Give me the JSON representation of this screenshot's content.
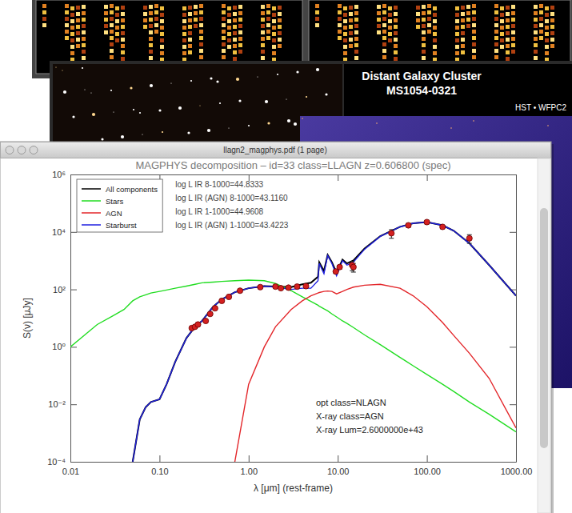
{
  "screenshot": {
    "window_title": "llagn2_magphys.pdf (1 page)",
    "background_title": [
      "Distant Galaxy Cluster",
      "MS1054-0321"
    ],
    "background_subtitle": "HST • WFPC2"
  },
  "chart_data": {
    "type": "line",
    "title": "MAGPHYS decomposition – id=33 class=LLAGN z=0.606800 (spec)",
    "x_label": "λ [μm] (rest-frame)",
    "y_label": "S(ν) [μJy]",
    "log": true,
    "grid": false,
    "legend": "top-left",
    "xlim": [
      0.01,
      1000
    ],
    "ylim": [
      0.0001,
      1000000
    ],
    "xticks": [
      0.01,
      {
        "value": 0.1,
        "label": "0.10"
      },
      {
        "value": 1,
        "label": "1.00"
      },
      {
        "value": 10,
        "label": "10.00"
      },
      {
        "value": 100,
        "label": "100.00"
      },
      {
        "value": 1000,
        "label": "1000.00"
      }
    ],
    "yticks": [
      {
        "value": 0.0001,
        "label": "10⁻⁴"
      },
      {
        "value": 0.01,
        "label": "10⁻²"
      },
      {
        "value": 1,
        "label": "10⁰"
      },
      {
        "value": 100,
        "label": "10²"
      },
      {
        "value": 10000,
        "label": "10⁴"
      },
      {
        "value": 1000000,
        "label": "10⁶"
      }
    ],
    "annotations": [
      [
        "log L IR 8-1000=44.8333",
        "log L IR (AGN) 8-1000=43.1160",
        "log L IR 1-1000=44.9608",
        "log L IR (AGN) 1-1000=43.4223"
      ],
      [
        "opt class=NLAGN",
        "X-ray class=AGN",
        "X-ray Lum=2.6000000e+43"
      ]
    ],
    "x": [
      0.01,
      0.02,
      0.03,
      0.04,
      0.05,
      0.06,
      0.07,
      0.08,
      0.1,
      0.12,
      0.15,
      0.2,
      0.25,
      0.3,
      0.4,
      0.5,
      0.7,
      1,
      1.5,
      2,
      3,
      4,
      5,
      6,
      6.2,
      7,
      7.7,
      8.6,
      9.7,
      11.3,
      12.7,
      15,
      20,
      30,
      50,
      70,
      100,
      150,
      200,
      300,
      500,
      1000
    ],
    "series": [
      {
        "name": "All components",
        "color": "#000000",
        "type": "line",
        "line_style": "solid",
        "values": [
          null,
          null,
          null,
          null,
          0.0001,
          0.003,
          0.008,
          0.012,
          0.015,
          0.05,
          0.3,
          2,
          5,
          8,
          25,
          45,
          80,
          110,
          131,
          125,
          120,
          150,
          170,
          275,
          880,
          435,
          1590,
          885,
          370,
          1085,
          800,
          1020,
          2640,
          7150,
          15110,
          20060,
          22025,
          17007,
          11003,
          4001,
          700,
          60
        ]
      },
      {
        "name": "Stars",
        "color": "#22dd22",
        "type": "line",
        "line_style": "solid",
        "values": [
          1,
          6,
          12,
          20,
          40,
          55,
          65,
          75,
          85,
          95,
          110,
          130,
          150,
          170,
          180,
          190,
          200,
          210,
          200,
          160,
          90,
          55,
          38,
          28,
          26,
          21,
          18,
          14,
          11,
          8,
          6.5,
          4.7,
          2.6,
          1.2,
          0.43,
          0.22,
          0.11,
          0.05,
          0.028,
          0.012,
          0.0045,
          0.0011
        ]
      },
      {
        "name": "AGN",
        "color": "#e3262a",
        "type": "line",
        "line_style": "solid",
        "values": [
          null,
          null,
          null,
          null,
          null,
          null,
          null,
          null,
          null,
          null,
          null,
          null,
          null,
          null,
          null,
          null,
          0.0001,
          0.05,
          1,
          5,
          20,
          40,
          60,
          75,
          78,
          85,
          88,
          85,
          70,
          85,
          100,
          120,
          140,
          150,
          110,
          60,
          25,
          7,
          2.5,
          0.6,
          0.08,
          0.0015
        ]
      },
      {
        "name": "Starburst",
        "color": "#2020e0",
        "type": "line",
        "line_style": "solid",
        "values": [
          null,
          null,
          null,
          null,
          0.0001,
          0.003,
          0.008,
          0.012,
          0.015,
          0.05,
          0.3,
          2,
          5,
          8,
          25,
          45,
          80,
          110,
          130,
          120,
          100,
          110,
          110,
          200,
          800,
          350,
          1500,
          800,
          300,
          1000,
          700,
          900,
          2500,
          7000,
          15000,
          20000,
          22000,
          17000,
          11000,
          4000,
          700,
          60
        ]
      },
      {
        "type": "scatter",
        "color": "#d42020",
        "marker": "circle",
        "x": [
          0.23,
          0.25,
          0.27,
          0.33,
          0.37,
          0.42,
          0.5,
          0.6,
          0.8,
          1.35,
          2,
          2.3,
          2.8,
          3.5,
          4.4,
          9.5,
          10.5,
          14.5,
          15,
          40,
          62,
          100,
          150,
          300
        ],
        "values": [
          4.5,
          5,
          6,
          8,
          14,
          22,
          40,
          55,
          90,
          120,
          125,
          110,
          115,
          125,
          130,
          420,
          600,
          700,
          600,
          9000,
          17000,
          22000,
          15000,
          6000
        ],
        "errors": [
          0.5,
          0.5,
          0.6,
          0.8,
          1.5,
          2,
          4,
          5,
          9,
          12,
          12,
          11,
          11,
          12,
          13,
          60,
          90,
          250,
          200,
          3000,
          2500,
          3000,
          2000,
          2000
        ]
      }
    ]
  }
}
